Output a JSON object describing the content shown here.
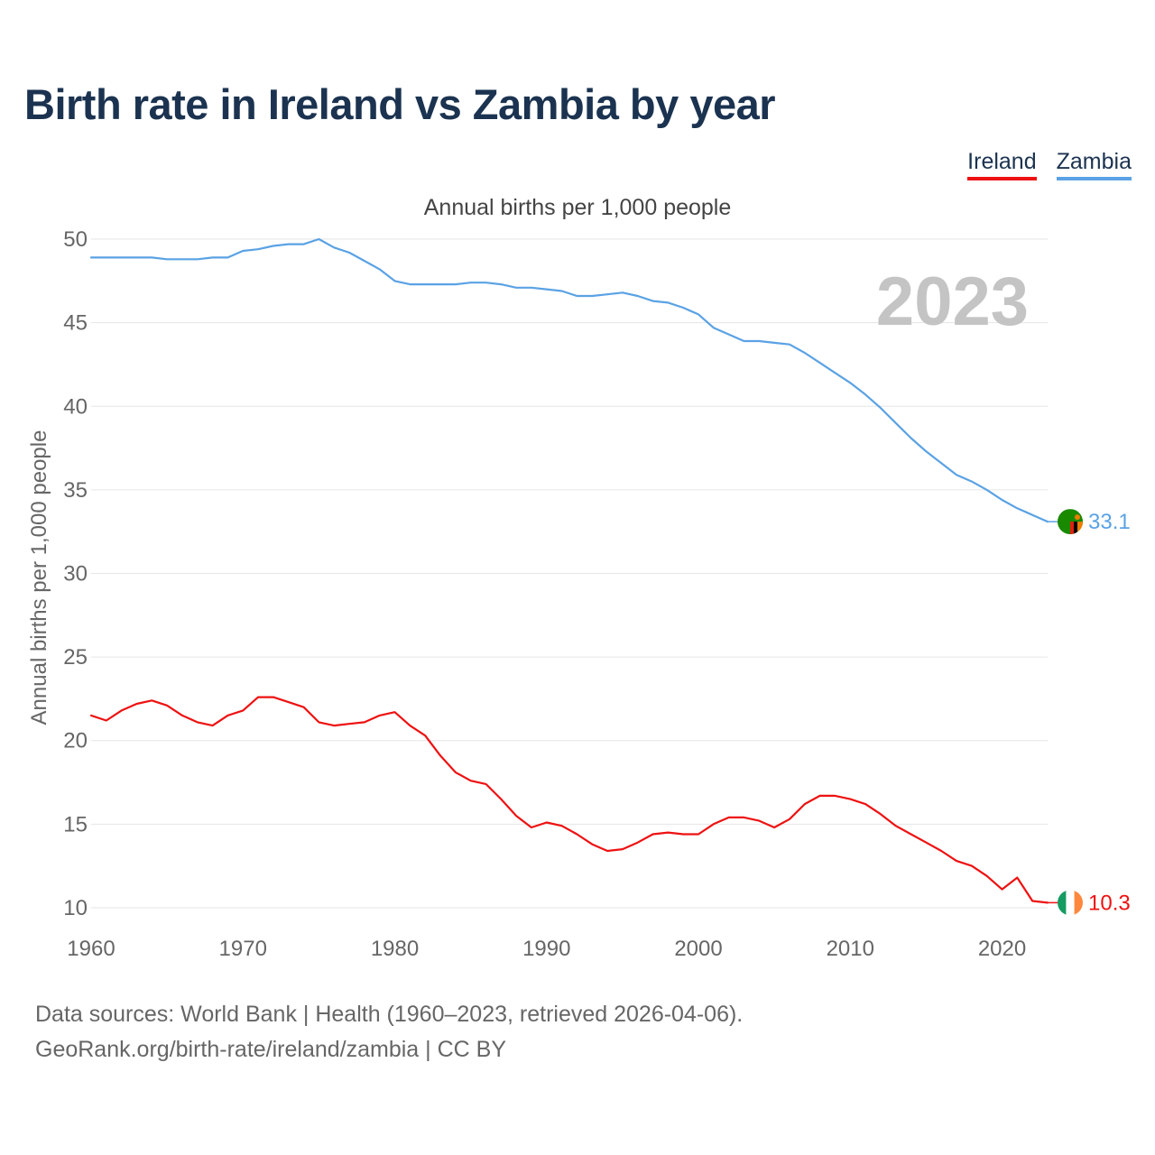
{
  "title": "Birth rate in Ireland vs Zambia by year",
  "subtitle": "Annual births per 1,000 people",
  "year_watermark": "2023",
  "legend": [
    {
      "label": "Ireland",
      "color": "#ee1111"
    },
    {
      "label": "Zambia",
      "color": "#5aa2e4"
    }
  ],
  "footer": {
    "line1": "Data sources: World Bank | Health (1960–2023, retrieved 2026-04-06).",
    "line2": "GeoRank.org/birth-rate/ireland/zambia | CC BY"
  },
  "chart_data": {
    "type": "line",
    "title": "Birth rate in Ireland vs Zambia by year",
    "xlabel": "",
    "ylabel": "Annual births per 1,000 people",
    "xlim": [
      1960,
      2023
    ],
    "ylim": [
      8,
      52
    ],
    "xticks": [
      1960,
      1970,
      1980,
      1990,
      2000,
      2010,
      2020
    ],
    "yticks": [
      10,
      15,
      20,
      25,
      30,
      35,
      40,
      45,
      50
    ],
    "grid": true,
    "legend_position": "top-right",
    "x": [
      1960,
      1961,
      1962,
      1963,
      1964,
      1965,
      1966,
      1967,
      1968,
      1969,
      1970,
      1971,
      1972,
      1973,
      1974,
      1975,
      1976,
      1977,
      1978,
      1979,
      1980,
      1981,
      1982,
      1983,
      1984,
      1985,
      1986,
      1987,
      1988,
      1989,
      1990,
      1991,
      1992,
      1993,
      1994,
      1995,
      1996,
      1997,
      1998,
      1999,
      2000,
      2001,
      2002,
      2003,
      2004,
      2005,
      2006,
      2007,
      2008,
      2009,
      2010,
      2011,
      2012,
      2013,
      2014,
      2015,
      2016,
      2017,
      2018,
      2019,
      2020,
      2021,
      2022,
      2023
    ],
    "series": [
      {
        "name": "Ireland",
        "color": "#ee1111",
        "end_label": "10.3",
        "flag": "ireland-flag-icon",
        "values": [
          21.5,
          21.2,
          21.8,
          22.2,
          22.4,
          22.1,
          21.5,
          21.1,
          20.9,
          21.5,
          21.8,
          22.6,
          22.6,
          22.3,
          22.0,
          21.1,
          20.9,
          21.0,
          21.1,
          21.5,
          21.7,
          20.9,
          20.3,
          19.1,
          18.1,
          17.6,
          17.4,
          16.5,
          15.5,
          14.8,
          15.1,
          14.9,
          14.4,
          13.8,
          13.4,
          13.5,
          13.9,
          14.4,
          14.5,
          14.4,
          14.4,
          15.0,
          15.4,
          15.4,
          15.2,
          14.8,
          15.3,
          16.2,
          16.7,
          16.7,
          16.5,
          16.2,
          15.6,
          14.9,
          14.4,
          13.9,
          13.4,
          12.8,
          12.5,
          11.9,
          11.1,
          11.8,
          10.4,
          10.3
        ]
      },
      {
        "name": "Zambia",
        "color": "#5aa2e4",
        "end_label": "33.1",
        "flag": "zambia-flag-icon",
        "values": [
          48.9,
          48.9,
          48.9,
          48.9,
          48.9,
          48.8,
          48.8,
          48.8,
          48.9,
          48.9,
          49.3,
          49.4,
          49.6,
          49.7,
          49.7,
          50.0,
          49.5,
          49.2,
          48.7,
          48.2,
          47.5,
          47.3,
          47.3,
          47.3,
          47.3,
          47.4,
          47.4,
          47.3,
          47.1,
          47.1,
          47.0,
          46.9,
          46.6,
          46.6,
          46.7,
          46.8,
          46.6,
          46.3,
          46.2,
          45.9,
          45.5,
          44.7,
          44.3,
          43.9,
          43.9,
          43.8,
          43.7,
          43.2,
          42.6,
          42.0,
          41.4,
          40.7,
          39.9,
          39.0,
          38.1,
          37.3,
          36.6,
          35.9,
          35.5,
          35.0,
          34.4,
          33.9,
          33.5,
          33.1
        ]
      }
    ]
  }
}
